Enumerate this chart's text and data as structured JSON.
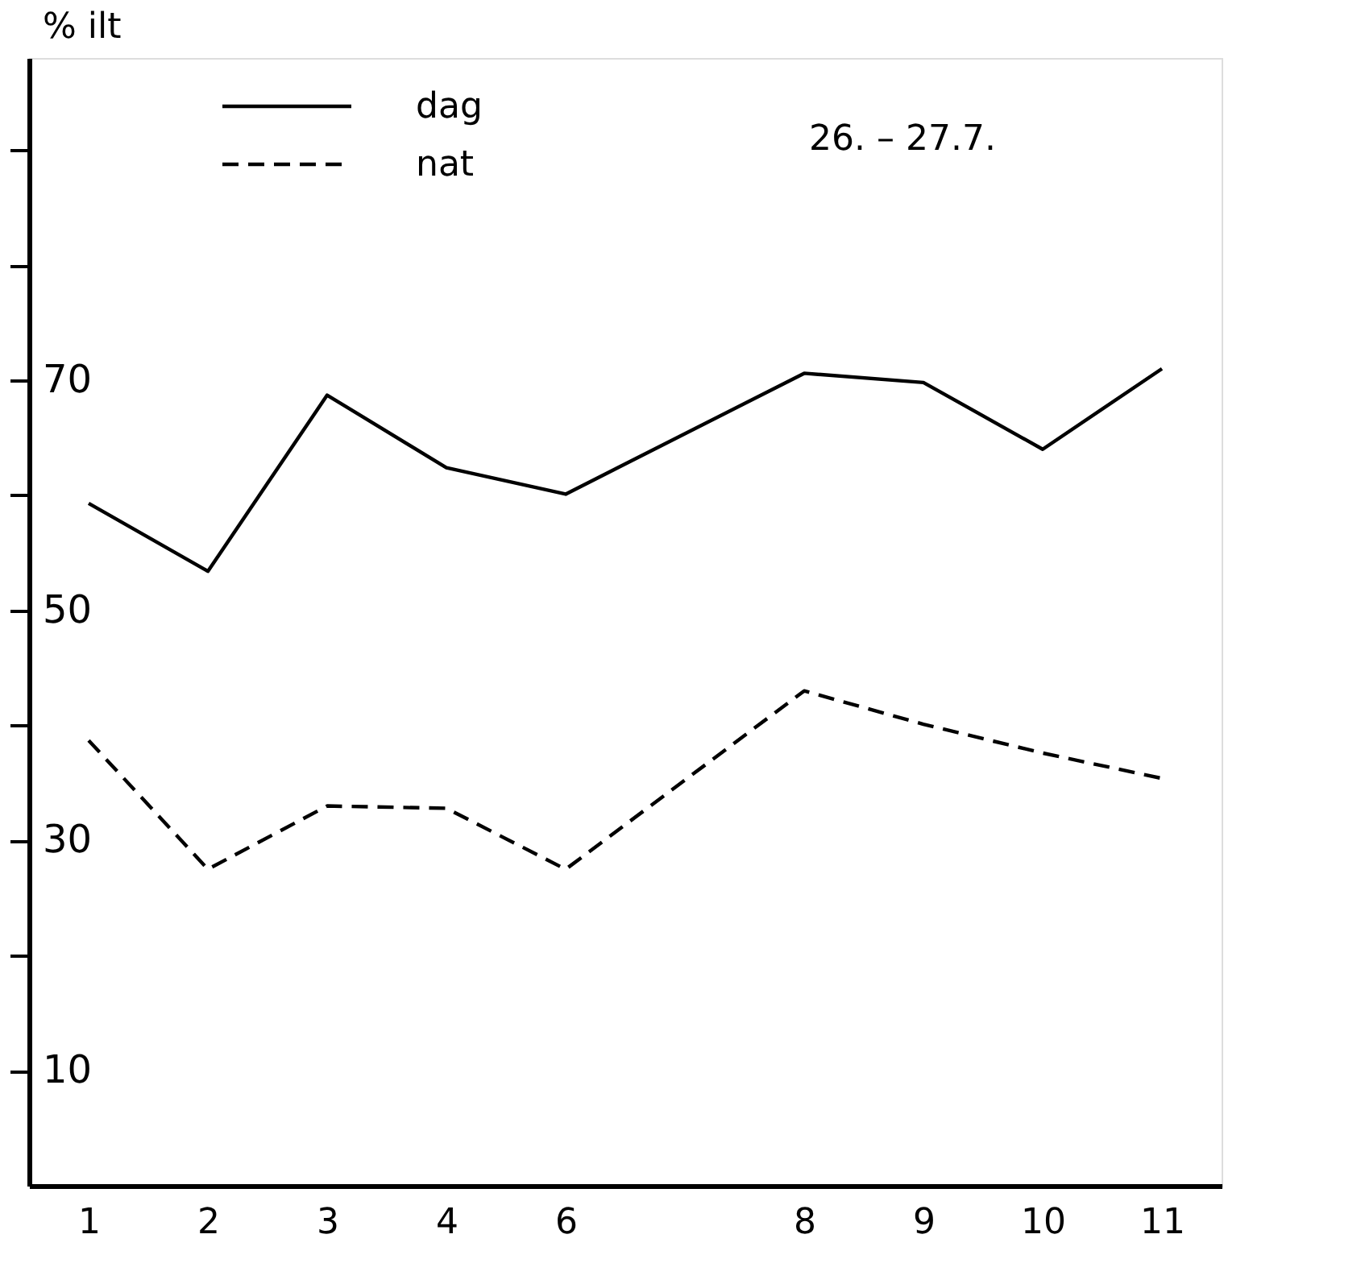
{
  "chart_data": {
    "type": "line",
    "ylabel": "% ilt",
    "annotations": [
      "26. – 27.7."
    ],
    "categories": [
      "1",
      "2",
      "3",
      "4",
      "6",
      null,
      "8",
      "9",
      "10",
      "11"
    ],
    "series": [
      {
        "name": "dag",
        "color": "#000000",
        "line_style": "solid",
        "values": [
          59.3,
          53.4,
          68.7,
          62.4,
          60.1,
          null,
          70.6,
          69.8,
          64.0,
          71.0
        ]
      },
      {
        "name": "nat",
        "color": "#000000",
        "line_style": "dashed",
        "values": [
          38.7,
          27.5,
          33.0,
          32.8,
          27.5,
          null,
          43.0,
          40.1,
          37.6,
          35.4
        ]
      }
    ],
    "ylim": [
      0,
      98
    ],
    "yticks": [
      10,
      {
        "value": 20,
        "label": null
      },
      30,
      {
        "value": 40,
        "label": null
      },
      50,
      {
        "value": 60,
        "label": null
      },
      70,
      {
        "value": 80,
        "label": null
      },
      {
        "value": 90,
        "label": null
      }
    ],
    "legend": "top left",
    "grid": false,
    "marker": "none"
  }
}
